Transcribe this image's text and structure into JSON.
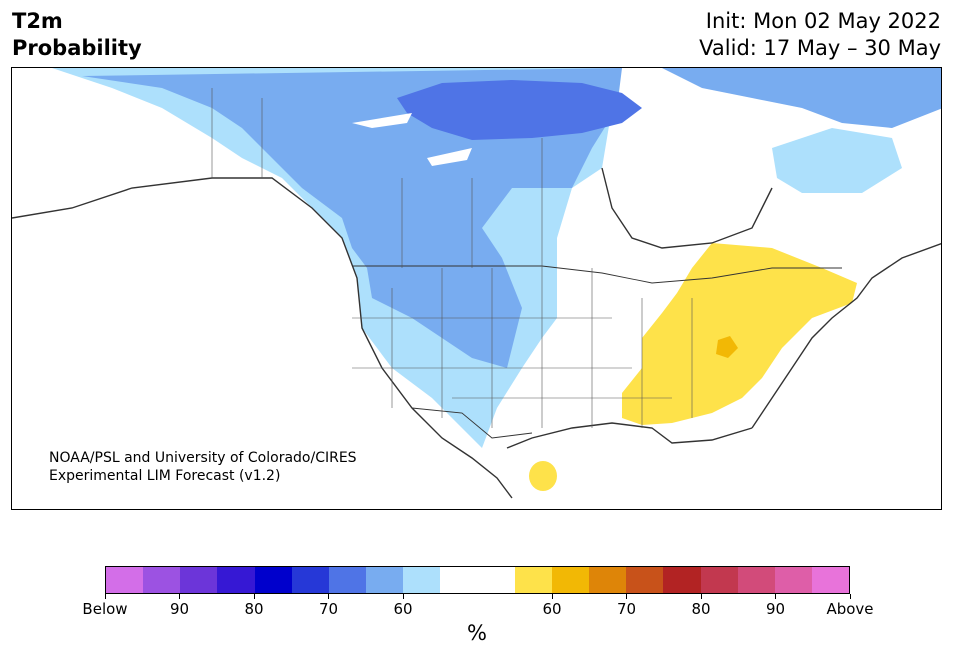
{
  "title": {
    "line1": "T2m",
    "line2": "Probability"
  },
  "dates": {
    "init": "Init: Mon 02 May 2022",
    "valid": "Valid: 17 May – 30 May"
  },
  "credit": {
    "line1": "NOAA/PSL and University of Colorado/CIRES",
    "line2": "Experimental LIM Forecast (v1.2)"
  },
  "legend": {
    "unit": "%",
    "colors": [
      "#d36ee8",
      "#9c52e2",
      "#6c35d9",
      "#3618d4",
      "#0000cc",
      "#2638d7",
      "#4f74e6",
      "#78acf0",
      "#ade0fc",
      "#ffffff",
      "#ffffff",
      "#fee24a",
      "#f2b805",
      "#de8508",
      "#c8521a",
      "#b22323",
      "#c2384f",
      "#d24b7a",
      "#de5ea8",
      "#e873da"
    ],
    "tick_labels": [
      "Below",
      "90",
      "80",
      "70",
      "60",
      "60",
      "70",
      "80",
      "90",
      "Above"
    ]
  },
  "map_colors": {
    "near_normal": "#ffffff",
    "below_50_60": "#ade0fc",
    "below_60_70": "#78acf0",
    "below_70_80": "#4f74e6",
    "above_50_60": "#fee24a",
    "above_60_70": "#f2b805",
    "lake_fill": "#ffffff",
    "coastline": "#333333"
  }
}
